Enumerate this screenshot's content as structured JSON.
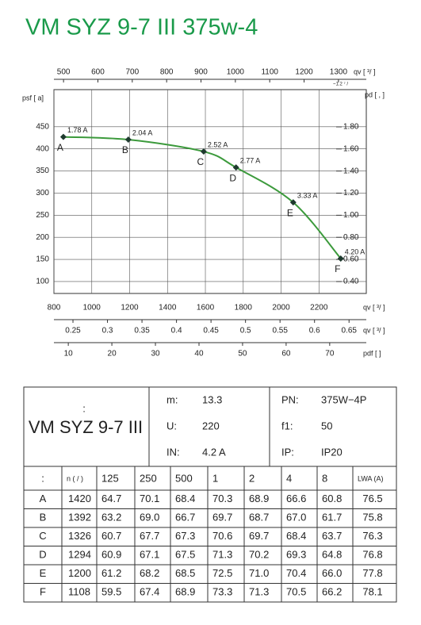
{
  "title": "VM SYZ 9-7 III 375w-4",
  "chart_data": {
    "type": "line",
    "x": [
      850,
      1193,
      1591,
      1762,
      2064,
      2315
    ],
    "series": [
      {
        "color": "#3c9a3c",
        "values": [
          427,
          421,
          394,
          358,
          279,
          152
        ]
      }
    ],
    "point_labels": [
      "A",
      "B",
      "C",
      "D",
      "E",
      "F"
    ],
    "current_labels": [
      "1.78 A",
      "2.04 A",
      "2.52 A",
      "2.77 A",
      "3.33 A",
      "4.20 A"
    ],
    "xlabel": "qv [ ³/ ]",
    "xlim": [
      800,
      2450
    ],
    "xticks": [
      800,
      1000,
      1200,
      1400,
      1600,
      1800,
      2000,
      2200
    ],
    "ylabel": "psf [ a]",
    "ylim": [
      73,
      534
    ],
    "yticks": [
      100,
      150,
      200,
      250,
      300,
      350,
      400,
      450
    ],
    "y2label": "pd [ , ]",
    "y2lim": [
      0.292,
      2.137
    ],
    "y2ticks": [
      {
        "value": 0.4,
        "label": "0.40"
      },
      {
        "value": 0.6,
        "label": "0.60"
      },
      {
        "value": 0.8,
        "label": "0.80"
      },
      {
        "value": 1.0,
        "label": "1.00"
      },
      {
        "value": 1.2,
        "label": "1.20"
      },
      {
        "value": 1.4,
        "label": "1.40"
      },
      {
        "value": 1.6,
        "label": "1.60"
      },
      {
        "value": 1.8,
        "label": "1.80"
      }
    ],
    "top_axis": {
      "label": "qv [ ³/ ]",
      "note": "~1.2 ⁷ /",
      "lim": [
        472,
        1381
      ],
      "ticks": [
        500,
        600,
        700,
        800,
        900,
        1000,
        1100,
        1200,
        1300
      ]
    },
    "bottom_axes": [
      {
        "label": "qv [ ³/ ]",
        "lim": [
          0.2224,
          0.675
        ],
        "ticks": [
          0.25,
          0.3,
          0.35,
          0.4,
          0.45,
          0.5,
          0.55,
          0.6,
          0.65
        ]
      },
      {
        "label": "pdf [ ]",
        "lim": [
          6.7,
          78.4
        ],
        "ticks": [
          10,
          20,
          30,
          40,
          50,
          60,
          70
        ]
      }
    ],
    "grid": true
  },
  "table": {
    "name_note": ":",
    "name": "VM SYZ 9-7 III",
    "specs": [
      [
        "m:",
        "13.3",
        "PN:",
        "375W−4P"
      ],
      [
        "U:",
        "220",
        "f1:",
        "50"
      ],
      [
        "IN:",
        "4.2 A",
        "IP:",
        "IP20"
      ]
    ],
    "header": [
      ":",
      "n ( / )",
      "125",
      "250",
      "500",
      "1",
      "2",
      "4",
      "8",
      "LWA (A)"
    ],
    "rows": [
      [
        "A",
        "1420",
        "64.7",
        "70.1",
        "68.4",
        "70.3",
        "68.9",
        "66.6",
        "60.8",
        "76.5"
      ],
      [
        "B",
        "1392",
        "63.2",
        "69.0",
        "66.7",
        "69.7",
        "68.7",
        "67.0",
        "61.7",
        "75.8"
      ],
      [
        "C",
        "1326",
        "60.7",
        "67.7",
        "67.3",
        "70.6",
        "69.7",
        "68.4",
        "63.7",
        "76.3"
      ],
      [
        "D",
        "1294",
        "60.9",
        "67.1",
        "67.5",
        "71.3",
        "70.2",
        "69.3",
        "64.8",
        "76.8"
      ],
      [
        "E",
        "1200",
        "61.2",
        "68.2",
        "68.5",
        "72.5",
        "71.0",
        "70.4",
        "66.0",
        "77.8"
      ],
      [
        "F",
        "1108",
        "59.5",
        "67.4",
        "68.9",
        "73.3",
        "71.3",
        "70.5",
        "66.2",
        "78.1"
      ]
    ]
  }
}
